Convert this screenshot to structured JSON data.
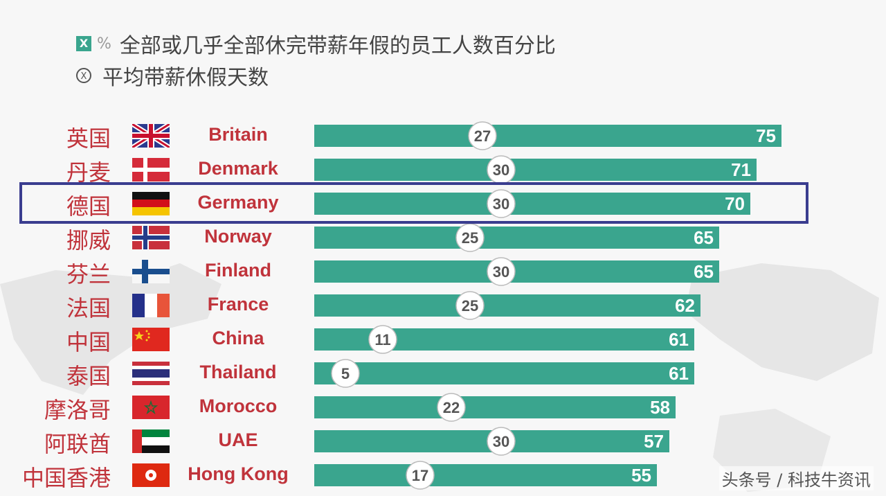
{
  "legend": {
    "pct_symbol": "%",
    "box_mark": "X",
    "circle_mark": "X",
    "series1": "全部或几乎全部休完带薪年假的员工人数百分比",
    "series2": "平均带薪休假天数"
  },
  "watermark": "头条号 / 科技牛资讯",
  "colors": {
    "bar": "#3aa58e",
    "label": "#c0333b",
    "highlight": "#3a3d8f"
  },
  "chart_data": {
    "type": "bar",
    "orientation": "horizontal",
    "categories": [
      "Britain",
      "Denmark",
      "Germany",
      "Norway",
      "Finland",
      "France",
      "China",
      "Thailand",
      "Morocco",
      "UAE",
      "Hong Kong"
    ],
    "categories_cn": [
      "英国",
      "丹麦",
      "德国",
      "挪威",
      "芬兰",
      "法国",
      "中国",
      "泰国",
      "摩洛哥",
      "阿联酋",
      "中国香港"
    ],
    "flags": [
      "uk-flag",
      "denmark-flag",
      "germany-flag",
      "norway-flag",
      "finland-flag",
      "france-flag",
      "china-flag",
      "thailand-flag",
      "morocco-flag",
      "uae-flag",
      "hongkong-flag"
    ],
    "series": [
      {
        "name": "全部或几乎全部休完带薪年假的员工人数百分比",
        "values": [
          75,
          71,
          70,
          65,
          65,
          62,
          61,
          61,
          58,
          57,
          55
        ]
      },
      {
        "name": "平均带薪休假天数",
        "values": [
          27,
          30,
          30,
          25,
          30,
          25,
          11,
          5,
          22,
          30,
          17
        ]
      }
    ],
    "highlighted_category": "Germany"
  }
}
